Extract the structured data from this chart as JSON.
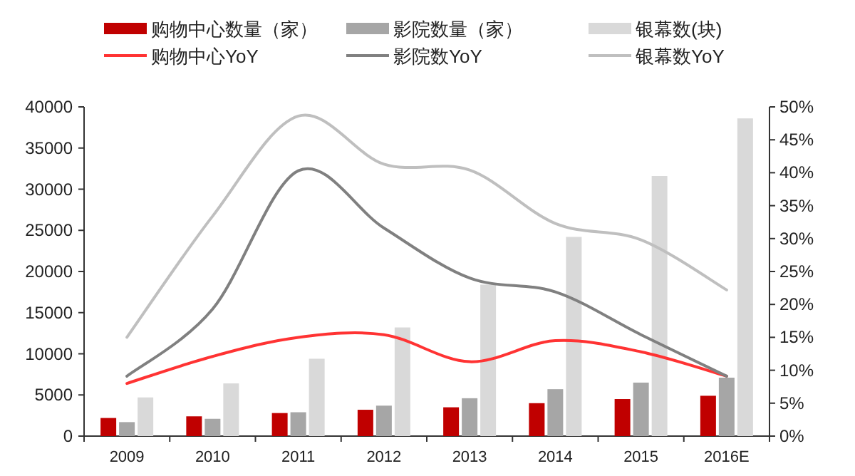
{
  "chart_data": {
    "type": "bar",
    "categories": [
      "2009",
      "2010",
      "2011",
      "2012",
      "2013",
      "2014",
      "2015",
      "2016E"
    ],
    "series": [
      {
        "name": "购物中心数量（家）",
        "color": "#c00000",
        "values": [
          2200,
          2400,
          2800,
          3200,
          3500,
          4000,
          4500,
          4900
        ]
      },
      {
        "name": "影院数量（家）",
        "color": "#a6a6a6",
        "values": [
          1700,
          2100,
          2900,
          3700,
          4600,
          5700,
          6500,
          7100
        ]
      },
      {
        "name": "银幕数(块)",
        "color": "#d9d9d9",
        "values": [
          4700,
          6400,
          9400,
          13200,
          18400,
          24200,
          31600,
          38600
        ]
      },
      {
        "name": "购物中心YoY",
        "type": "line",
        "axis": "y2",
        "color": "#ff3333",
        "values": [
          8.0,
          12.1,
          15.0,
          15.4,
          11.3,
          14.5,
          12.8,
          9.1
        ]
      },
      {
        "name": "影院数YoY",
        "type": "line",
        "axis": "y2",
        "color": "#808080",
        "values": [
          9.1,
          19.3,
          40.3,
          31.6,
          24.0,
          21.9,
          15.4,
          9.1
        ]
      },
      {
        "name": "银幕数YoY",
        "type": "line",
        "axis": "y2",
        "color": "#bfbfbf",
        "values": [
          15.0,
          33.4,
          48.6,
          41.3,
          40.4,
          32.3,
          29.8,
          22.2
        ]
      }
    ],
    "ylim": [
      0,
      40000
    ],
    "yticks": [
      0,
      5000,
      10000,
      15000,
      20000,
      25000,
      30000,
      35000,
      40000
    ],
    "y2lim": [
      0,
      50
    ],
    "y2ticks": [
      {
        "value": 0,
        "label": "0%"
      },
      {
        "value": 5,
        "label": "5%"
      },
      {
        "value": 10,
        "label": "10%"
      },
      {
        "value": 15,
        "label": "15%"
      },
      {
        "value": 20,
        "label": "20%"
      },
      {
        "value": 25,
        "label": "25%"
      },
      {
        "value": 30,
        "label": "30%"
      },
      {
        "value": 35,
        "label": "35%"
      },
      {
        "value": 40,
        "label": "40%"
      },
      {
        "value": 45,
        "label": "45%"
      },
      {
        "value": 50,
        "label": "50%"
      }
    ],
    "legend": "top"
  }
}
